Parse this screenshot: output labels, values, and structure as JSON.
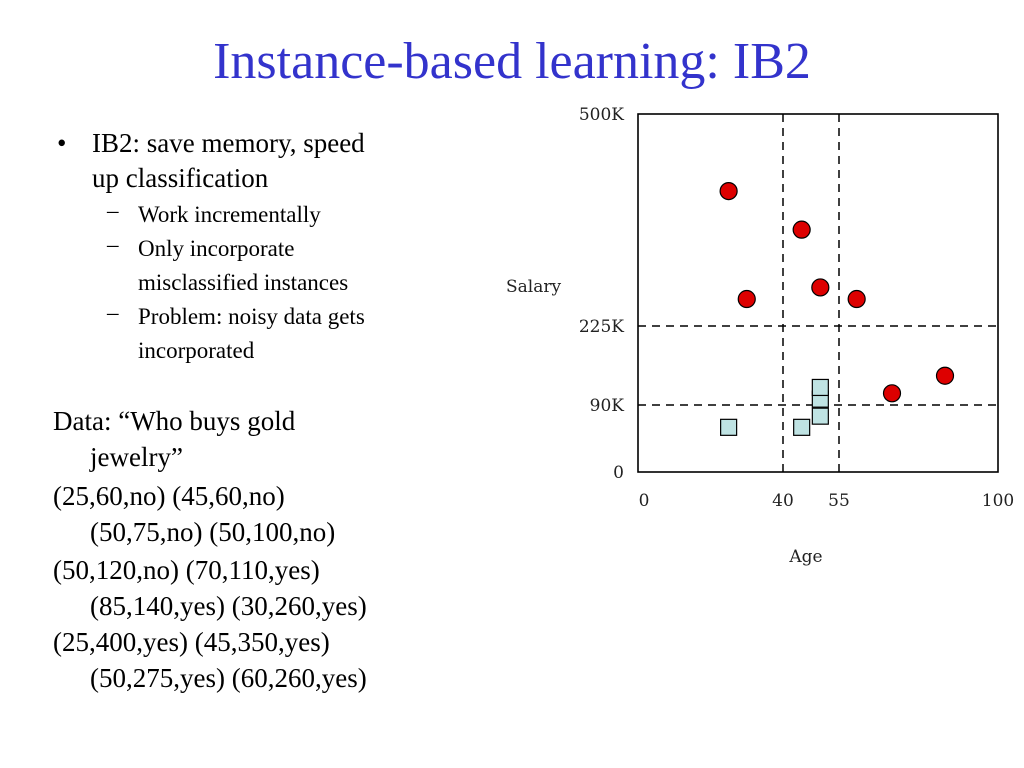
{
  "slide": {
    "title": "Instance-based learning: IB2",
    "bullet": {
      "line1": "IB2: save memory, speed",
      "line2": "up classification",
      "subs": [
        {
          "line1": "Work incrementally",
          "line2": ""
        },
        {
          "line1": "Only incorporate",
          "line2": "misclassified instances"
        },
        {
          "line1": "Problem: noisy data gets",
          "line2": "incorporated"
        }
      ],
      "bullet_char": "•",
      "dash_char": "–"
    },
    "data_lines": [
      "Data: “Who buys gold",
      "jewelry”",
      "(25,60,no) (45,60,no)",
      "(50,75,no)  (50,100,no)",
      "(50,120,no) (70,110,yes)",
      "(85,140,yes) (30,260,yes)",
      "(25,400,yes) (45,350,yes)",
      "(50,275,yes) (60,260,yes)"
    ]
  },
  "chart_data": {
    "type": "scatter",
    "xlabel": "Age",
    "ylabel": "Salary",
    "x_ticks": [
      {
        "value": 0,
        "label": "0"
      },
      {
        "value": 40,
        "label": "40"
      },
      {
        "value": 55,
        "label": "55"
      },
      {
        "value": 100,
        "label": "100"
      }
    ],
    "y_ticks": [
      {
        "value": 0,
        "label": "0"
      },
      {
        "value": 90,
        "label": "90K"
      },
      {
        "value": 225,
        "label": "225K"
      },
      {
        "value": 500,
        "label": "500K"
      }
    ],
    "ylim": [
      0,
      500
    ],
    "xlim": [
      0,
      100
    ],
    "dashed_vertical": [
      40,
      55
    ],
    "dashed_horizontal": [
      90,
      225
    ],
    "series": [
      {
        "marker": "circle",
        "color": "#dd0000",
        "points": [
          [
            25,
            400
          ],
          [
            45,
            350
          ],
          [
            50,
            275
          ],
          [
            60,
            260
          ],
          [
            30,
            260
          ],
          [
            70,
            110
          ],
          [
            85,
            140
          ]
        ]
      },
      {
        "marker": "square",
        "color": "#bfe3e3",
        "points": [
          [
            25,
            60
          ],
          [
            45,
            60
          ],
          [
            50,
            75
          ],
          [
            50,
            100
          ],
          [
            50,
            120
          ]
        ]
      }
    ]
  }
}
